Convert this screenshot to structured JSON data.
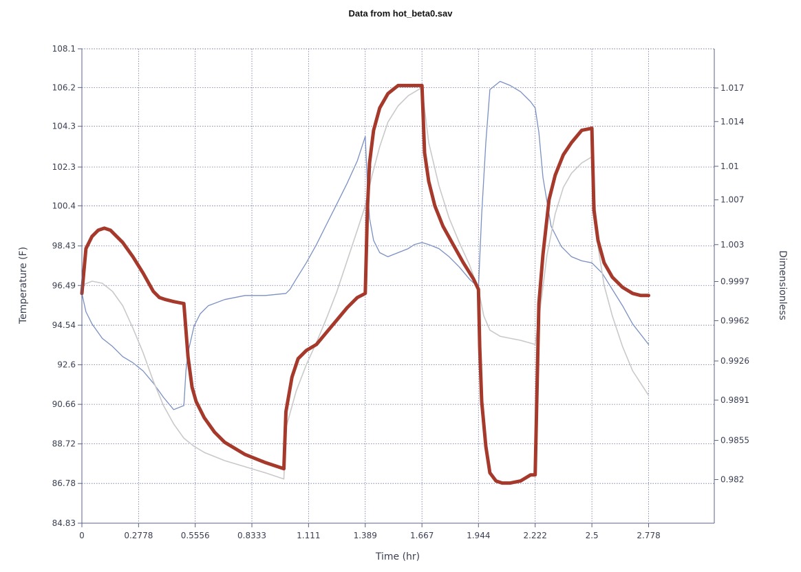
{
  "chart_data": {
    "type": "line",
    "title": "Data from hot_beta0.sav",
    "xlabel": "Time (hr)",
    "ylabel_left": "Temperature (F)",
    "ylabel_right": "Dimensionless",
    "xlim": [
      0,
      3.1
    ],
    "ylim_left": [
      84.83,
      108.1
    ],
    "ylim_right": [
      0.9781,
      1.0205
    ],
    "x_ticks": [
      "0",
      "0.2778",
      "0.5556",
      "0.8333",
      "1.111",
      "1.389",
      "1.667",
      "1.944",
      "2.222",
      "2.5",
      "2.778"
    ],
    "y_ticks_left": [
      "84.83",
      "86.78",
      "88.72",
      "90.66",
      "92.6",
      "94.54",
      "96.49",
      "98.43",
      "100.4",
      "102.3",
      "104.3",
      "106.2",
      "108.1"
    ],
    "y_ticks_right": [
      "0.982",
      "0.9855",
      "0.9891",
      "0.9926",
      "0.9962",
      "0.9997",
      "1.003",
      "1.007",
      "1.01",
      "1.014",
      "1.017"
    ],
    "grid": true,
    "colors": {
      "red": "#a53a2c",
      "gray": "#c9c9c9",
      "blue": "#7a8fc2",
      "frame": "#5a6080"
    },
    "series": [
      {
        "color": "#a53a2c",
        "axis": "left",
        "x": [
          0,
          0.02,
          0.05,
          0.08,
          0.11,
          0.14,
          0.17,
          0.2,
          0.25,
          0.3,
          0.35,
          0.38,
          0.41,
          0.45,
          0.5,
          0.52,
          0.54,
          0.56,
          0.6,
          0.65,
          0.7,
          0.8,
          0.9,
          0.99,
          1.0,
          1.03,
          1.06,
          1.1,
          1.15,
          1.2,
          1.25,
          1.3,
          1.35,
          1.389,
          1.4,
          1.41,
          1.43,
          1.46,
          1.5,
          1.55,
          1.6,
          1.63,
          1.667,
          1.68,
          1.7,
          1.73,
          1.77,
          1.82,
          1.87,
          1.92,
          1.944,
          1.95,
          1.96,
          1.98,
          2.0,
          2.03,
          2.06,
          2.1,
          2.15,
          2.2,
          2.222,
          2.24,
          2.26,
          2.29,
          2.32,
          2.36,
          2.4,
          2.45,
          2.5,
          2.51,
          2.53,
          2.56,
          2.6,
          2.65,
          2.7,
          2.74,
          2.778
        ],
        "y": [
          96.1,
          98.3,
          98.9,
          99.2,
          99.3,
          99.2,
          98.9,
          98.6,
          97.9,
          97.1,
          96.2,
          95.9,
          95.8,
          95.7,
          95.6,
          93.0,
          91.5,
          90.8,
          90.0,
          89.3,
          88.8,
          88.2,
          87.8,
          87.5,
          90.3,
          92.0,
          92.9,
          93.3,
          93.6,
          94.2,
          94.8,
          95.4,
          95.9,
          96.1,
          100.3,
          102.5,
          104.1,
          105.2,
          105.9,
          106.3,
          106.3,
          106.3,
          106.3,
          103.0,
          101.6,
          100.4,
          99.4,
          98.5,
          97.6,
          96.8,
          96.3,
          93.5,
          90.8,
          88.6,
          87.3,
          86.9,
          86.8,
          86.8,
          86.9,
          87.2,
          87.2,
          95.6,
          98.0,
          100.7,
          101.9,
          102.9,
          103.5,
          104.1,
          104.2,
          100.2,
          98.7,
          97.6,
          96.9,
          96.4,
          96.1,
          96.0,
          96.0
        ]
      },
      {
        "color": "#c9c9c9",
        "axis": "left",
        "x": [
          0,
          0.05,
          0.1,
          0.15,
          0.2,
          0.25,
          0.3,
          0.35,
          0.4,
          0.45,
          0.5,
          0.55,
          0.6,
          0.7,
          0.8,
          0.9,
          0.99,
          1.0,
          1.05,
          1.1,
          1.15,
          1.2,
          1.25,
          1.3,
          1.35,
          1.389,
          1.42,
          1.46,
          1.5,
          1.55,
          1.6,
          1.667,
          1.7,
          1.75,
          1.8,
          1.85,
          1.9,
          1.944,
          1.97,
          2.0,
          2.05,
          2.1,
          2.15,
          2.222,
          2.25,
          2.28,
          2.32,
          2.36,
          2.4,
          2.45,
          2.5,
          2.53,
          2.56,
          2.6,
          2.65,
          2.7,
          2.778
        ],
        "y": [
          96.5,
          96.7,
          96.6,
          96.2,
          95.5,
          94.4,
          93.2,
          91.8,
          90.6,
          89.7,
          89.0,
          88.6,
          88.3,
          87.9,
          87.6,
          87.3,
          87.0,
          89.5,
          91.3,
          92.6,
          93.7,
          94.9,
          96.2,
          97.7,
          99.2,
          100.4,
          101.8,
          103.3,
          104.5,
          105.3,
          105.8,
          106.2,
          103.5,
          101.4,
          99.8,
          98.6,
          97.5,
          96.3,
          95.0,
          94.3,
          94.0,
          93.9,
          93.8,
          93.6,
          95.6,
          98.0,
          100.0,
          101.3,
          102.0,
          102.5,
          102.8,
          98.4,
          96.5,
          95.0,
          93.5,
          92.3,
          91.1
        ]
      },
      {
        "color": "#7a8fc2",
        "axis": "left",
        "x": [
          0,
          0.02,
          0.05,
          0.1,
          0.15,
          0.2,
          0.25,
          0.3,
          0.35,
          0.4,
          0.45,
          0.5,
          0.51,
          0.52,
          0.55,
          0.58,
          0.62,
          0.7,
          0.8,
          0.9,
          1.0,
          1.02,
          1.05,
          1.1,
          1.15,
          1.2,
          1.25,
          1.3,
          1.35,
          1.389,
          1.4,
          1.41,
          1.43,
          1.46,
          1.5,
          1.55,
          1.6,
          1.63,
          1.667,
          1.7,
          1.75,
          1.8,
          1.85,
          1.9,
          1.944,
          1.96,
          1.98,
          2.0,
          2.05,
          2.1,
          2.15,
          2.2,
          2.222,
          2.24,
          2.26,
          2.3,
          2.35,
          2.4,
          2.45,
          2.5,
          2.55,
          2.6,
          2.65,
          2.7,
          2.778
        ],
        "y": [
          96.1,
          95.2,
          94.6,
          93.9,
          93.5,
          93.0,
          92.7,
          92.3,
          91.7,
          91.0,
          90.4,
          90.6,
          92.3,
          93.2,
          94.5,
          95.1,
          95.5,
          95.8,
          96.0,
          96.0,
          96.1,
          96.3,
          96.8,
          97.6,
          98.5,
          99.5,
          100.5,
          101.5,
          102.6,
          103.8,
          101.4,
          99.8,
          98.7,
          98.1,
          97.9,
          98.1,
          98.3,
          98.5,
          98.6,
          98.5,
          98.3,
          97.9,
          97.4,
          96.8,
          96.4,
          100.0,
          103.5,
          106.1,
          106.5,
          106.3,
          106.0,
          105.5,
          105.2,
          104.0,
          101.8,
          99.4,
          98.4,
          97.9,
          97.7,
          97.6,
          97.1,
          96.3,
          95.5,
          94.6,
          93.6
        ]
      }
    ]
  }
}
